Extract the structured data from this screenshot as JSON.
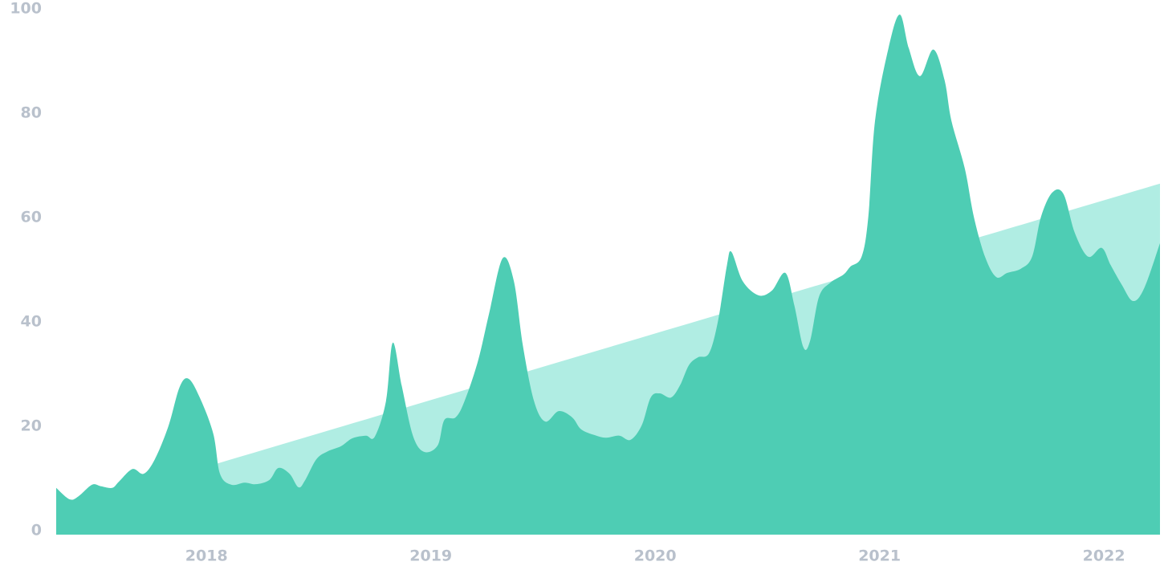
{
  "chart_data": {
    "type": "area",
    "xlim": [
      2017.33,
      2022.25
    ],
    "xticks": [
      2018,
      2019,
      2020,
      2021,
      2022
    ],
    "ylim": [
      0,
      100
    ],
    "yticks": [
      0,
      20,
      40,
      60,
      80,
      100
    ],
    "grid": false,
    "series": [
      {
        "color": "#b0ede3",
        "x": [
          2017.33,
          2022.25
        ],
        "values": [
          3.7,
          66.5
        ]
      },
      {
        "color": "#4ecdb4",
        "x": [
          2017.33,
          2017.39,
          2017.43,
          2017.49,
          2017.53,
          2017.58,
          2017.61,
          2017.67,
          2017.72,
          2017.77,
          2017.83,
          2017.88,
          2017.92,
          2017.97,
          2018.03,
          2018.06,
          2018.11,
          2018.17,
          2018.22,
          2018.28,
          2018.32,
          2018.37,
          2018.41,
          2018.44,
          2018.49,
          2018.54,
          2018.6,
          2018.65,
          2018.71,
          2018.75,
          2018.8,
          2018.83,
          2018.87,
          2018.92,
          2018.97,
          2019.03,
          2019.06,
          2019.11,
          2019.15,
          2019.21,
          2019.26,
          2019.32,
          2019.37,
          2019.41,
          2019.46,
          2019.51,
          2019.57,
          2019.63,
          2019.67,
          2019.73,
          2019.78,
          2019.84,
          2019.89,
          2019.94,
          2019.98,
          2020.02,
          2020.07,
          2020.11,
          2020.15,
          2020.19,
          2020.24,
          2020.28,
          2020.32,
          2020.34,
          2020.39,
          2020.46,
          2020.52,
          2020.58,
          2020.62,
          2020.66,
          2020.69,
          2020.73,
          2020.78,
          2020.84,
          2020.87,
          2020.92,
          2020.95,
          2020.98,
          2021.04,
          2021.09,
          2021.13,
          2021.18,
          2021.24,
          2021.29,
          2021.32,
          2021.38,
          2021.42,
          2021.47,
          2021.52,
          2021.57,
          2021.63,
          2021.68,
          2021.72,
          2021.77,
          2021.82,
          2021.87,
          2021.93,
          2021.99,
          2022.03,
          2022.08,
          2022.13,
          2022.18,
          2022.25
        ],
        "values": [
          8.2,
          6.0,
          6.6,
          8.8,
          8.5,
          8.2,
          9.4,
          11.8,
          10.9,
          13.7,
          20,
          27.5,
          29.1,
          25.5,
          18.6,
          10.9,
          8.8,
          9.2,
          8.9,
          9.7,
          12,
          10.9,
          8.3,
          9.7,
          13.7,
          15.2,
          16.2,
          17.7,
          18.2,
          18,
          24.8,
          36,
          27.8,
          18.2,
          15.1,
          16.3,
          21.2,
          21.7,
          24.8,
          32.5,
          41.7,
          52.2,
          47.8,
          35.5,
          24.8,
          20.9,
          22.9,
          21.7,
          19.4,
          18.3,
          17.8,
          18.2,
          17.4,
          20.2,
          25.5,
          26.3,
          25.5,
          27.8,
          31.7,
          33.2,
          34,
          40.2,
          50.9,
          53.4,
          47.8,
          45.1,
          46,
          49.4,
          43.2,
          35.2,
          36.3,
          44.8,
          47.5,
          49.1,
          50.6,
          52.5,
          60.2,
          78.6,
          92.5,
          98.9,
          92.5,
          87.1,
          92.2,
          86.3,
          78.6,
          69.4,
          60.2,
          52.5,
          48.6,
          49.4,
          50.2,
          52.5,
          60.2,
          64.8,
          64.5,
          57.1,
          52.5,
          54.2,
          50.9,
          47.1,
          44,
          46.5,
          55.1
        ]
      }
    ]
  }
}
